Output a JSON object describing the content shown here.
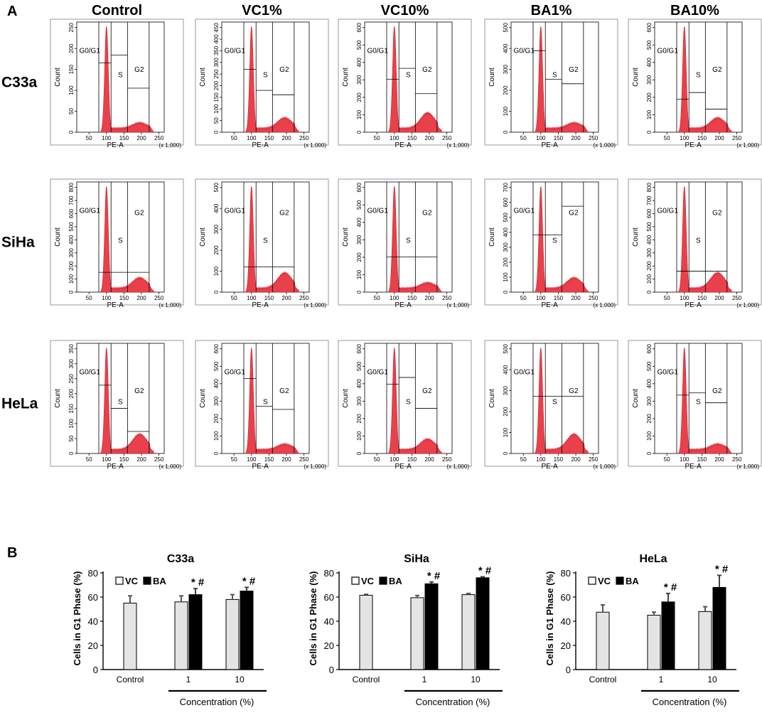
{
  "panel_labels": {
    "a": "A",
    "b": "B"
  },
  "panel_a": {
    "columns": [
      "Control",
      "VC1%",
      "VC10%",
      "BA1%",
      "BA10%"
    ],
    "rows": [
      "C33a",
      "SiHa",
      "HeLa"
    ],
    "x_axis": {
      "label": "PE-A",
      "unit": "(x 1,000)",
      "ticks": [
        "50",
        "100",
        "150",
        "200",
        "250"
      ]
    },
    "y_axis_label": "Count",
    "gate_labels": {
      "g1": "G0/G1",
      "s": "S",
      "g2": "G2"
    },
    "y_ticks": [
      [
        [
          "0",
          "50",
          "100",
          "150",
          "200",
          "250"
        ],
        [
          "0",
          "50",
          "100",
          "150",
          "200",
          "250",
          "300",
          "350",
          "400",
          "450"
        ],
        [
          "0",
          "100",
          "200",
          "300",
          "400",
          "500",
          "600"
        ],
        [
          "0",
          "100",
          "200",
          "300",
          "400",
          "500"
        ],
        [
          "0",
          "100",
          "200",
          "300",
          "400",
          "500",
          "600"
        ]
      ],
      [
        [
          "0",
          "100",
          "200",
          "300",
          "400",
          "500",
          "600",
          "700",
          "800"
        ],
        [
          "0",
          "100",
          "200",
          "300",
          "400",
          "500"
        ],
        [
          "0",
          "100",
          "200",
          "300",
          "400",
          "500",
          "600"
        ],
        [
          "0",
          "100",
          "200",
          "300",
          "400",
          "500",
          "600",
          "700"
        ],
        [
          "0",
          "100",
          "200",
          "300",
          "400",
          "500",
          "600",
          "700",
          "800"
        ]
      ],
      [
        [
          "0",
          "50",
          "100",
          "150",
          "200",
          "250",
          "300",
          "350"
        ],
        [
          "0",
          "100",
          "200",
          "300",
          "400",
          "500",
          "600"
        ],
        [
          "0",
          "100",
          "200",
          "300",
          "400",
          "500",
          "600"
        ],
        [
          "0",
          "100",
          "200",
          "300",
          "400",
          "500"
        ],
        [
          "0",
          "100",
          "200",
          "300",
          "400",
          "500",
          "600"
        ]
      ]
    ]
  },
  "chart_data": [
    {
      "type": "bar",
      "title": "C33a",
      "categories": [
        "Control",
        "1",
        "10"
      ],
      "series": [
        {
          "name": "VC",
          "values": [
            55,
            56,
            58
          ],
          "errors": [
            6,
            5,
            4
          ]
        },
        {
          "name": "BA",
          "values": [
            null,
            62,
            65
          ],
          "errors": [
            null,
            5,
            3
          ]
        }
      ],
      "annotations": [
        "",
        "* #",
        "* #"
      ],
      "xlabel": "Concentration (%)",
      "ylabel": "Cells in G1 Phase (%)",
      "yticks": [
        "0",
        "20",
        "40",
        "60",
        "80"
      ],
      "ylim": [
        0,
        80
      ]
    },
    {
      "type": "bar",
      "title": "SiHa",
      "categories": [
        "Control",
        "1",
        "10"
      ],
      "series": [
        {
          "name": "VC",
          "values": [
            61.5,
            59.5,
            62
          ],
          "errors": [
            0.8,
            1.8,
            1
          ]
        },
        {
          "name": "BA",
          "values": [
            null,
            71,
            76
          ],
          "errors": [
            null,
            1.5,
            0.8
          ]
        }
      ],
      "annotations": [
        "",
        "* #",
        "* #"
      ],
      "xlabel": "Concentration (%)",
      "ylabel": "Cells in G1 Phase (%)",
      "yticks": [
        "0",
        "20",
        "40",
        "60",
        "80"
      ],
      "ylim": [
        0,
        80
      ]
    },
    {
      "type": "bar",
      "title": "HeLa",
      "categories": [
        "Control",
        "1",
        "10"
      ],
      "series": [
        {
          "name": "VC",
          "values": [
            47.5,
            45,
            48
          ],
          "errors": [
            6,
            2.5,
            4
          ]
        },
        {
          "name": "BA",
          "values": [
            null,
            56,
            68
          ],
          "errors": [
            null,
            7,
            10
          ]
        }
      ],
      "annotations": [
        "",
        "* #",
        "* #"
      ],
      "xlabel": "Concentration (%)",
      "ylabel": "Cells in G1 Phase (%)",
      "yticks": [
        "0",
        "20",
        "40",
        "60",
        "80"
      ],
      "ylim": [
        0,
        80
      ]
    }
  ],
  "colors": {
    "histogram_fill": "#e8414b",
    "histogram_edge": "#d41f2b",
    "vc_bar": "#e4e4e4",
    "ba_bar": "#000000",
    "axis": "#000000"
  }
}
